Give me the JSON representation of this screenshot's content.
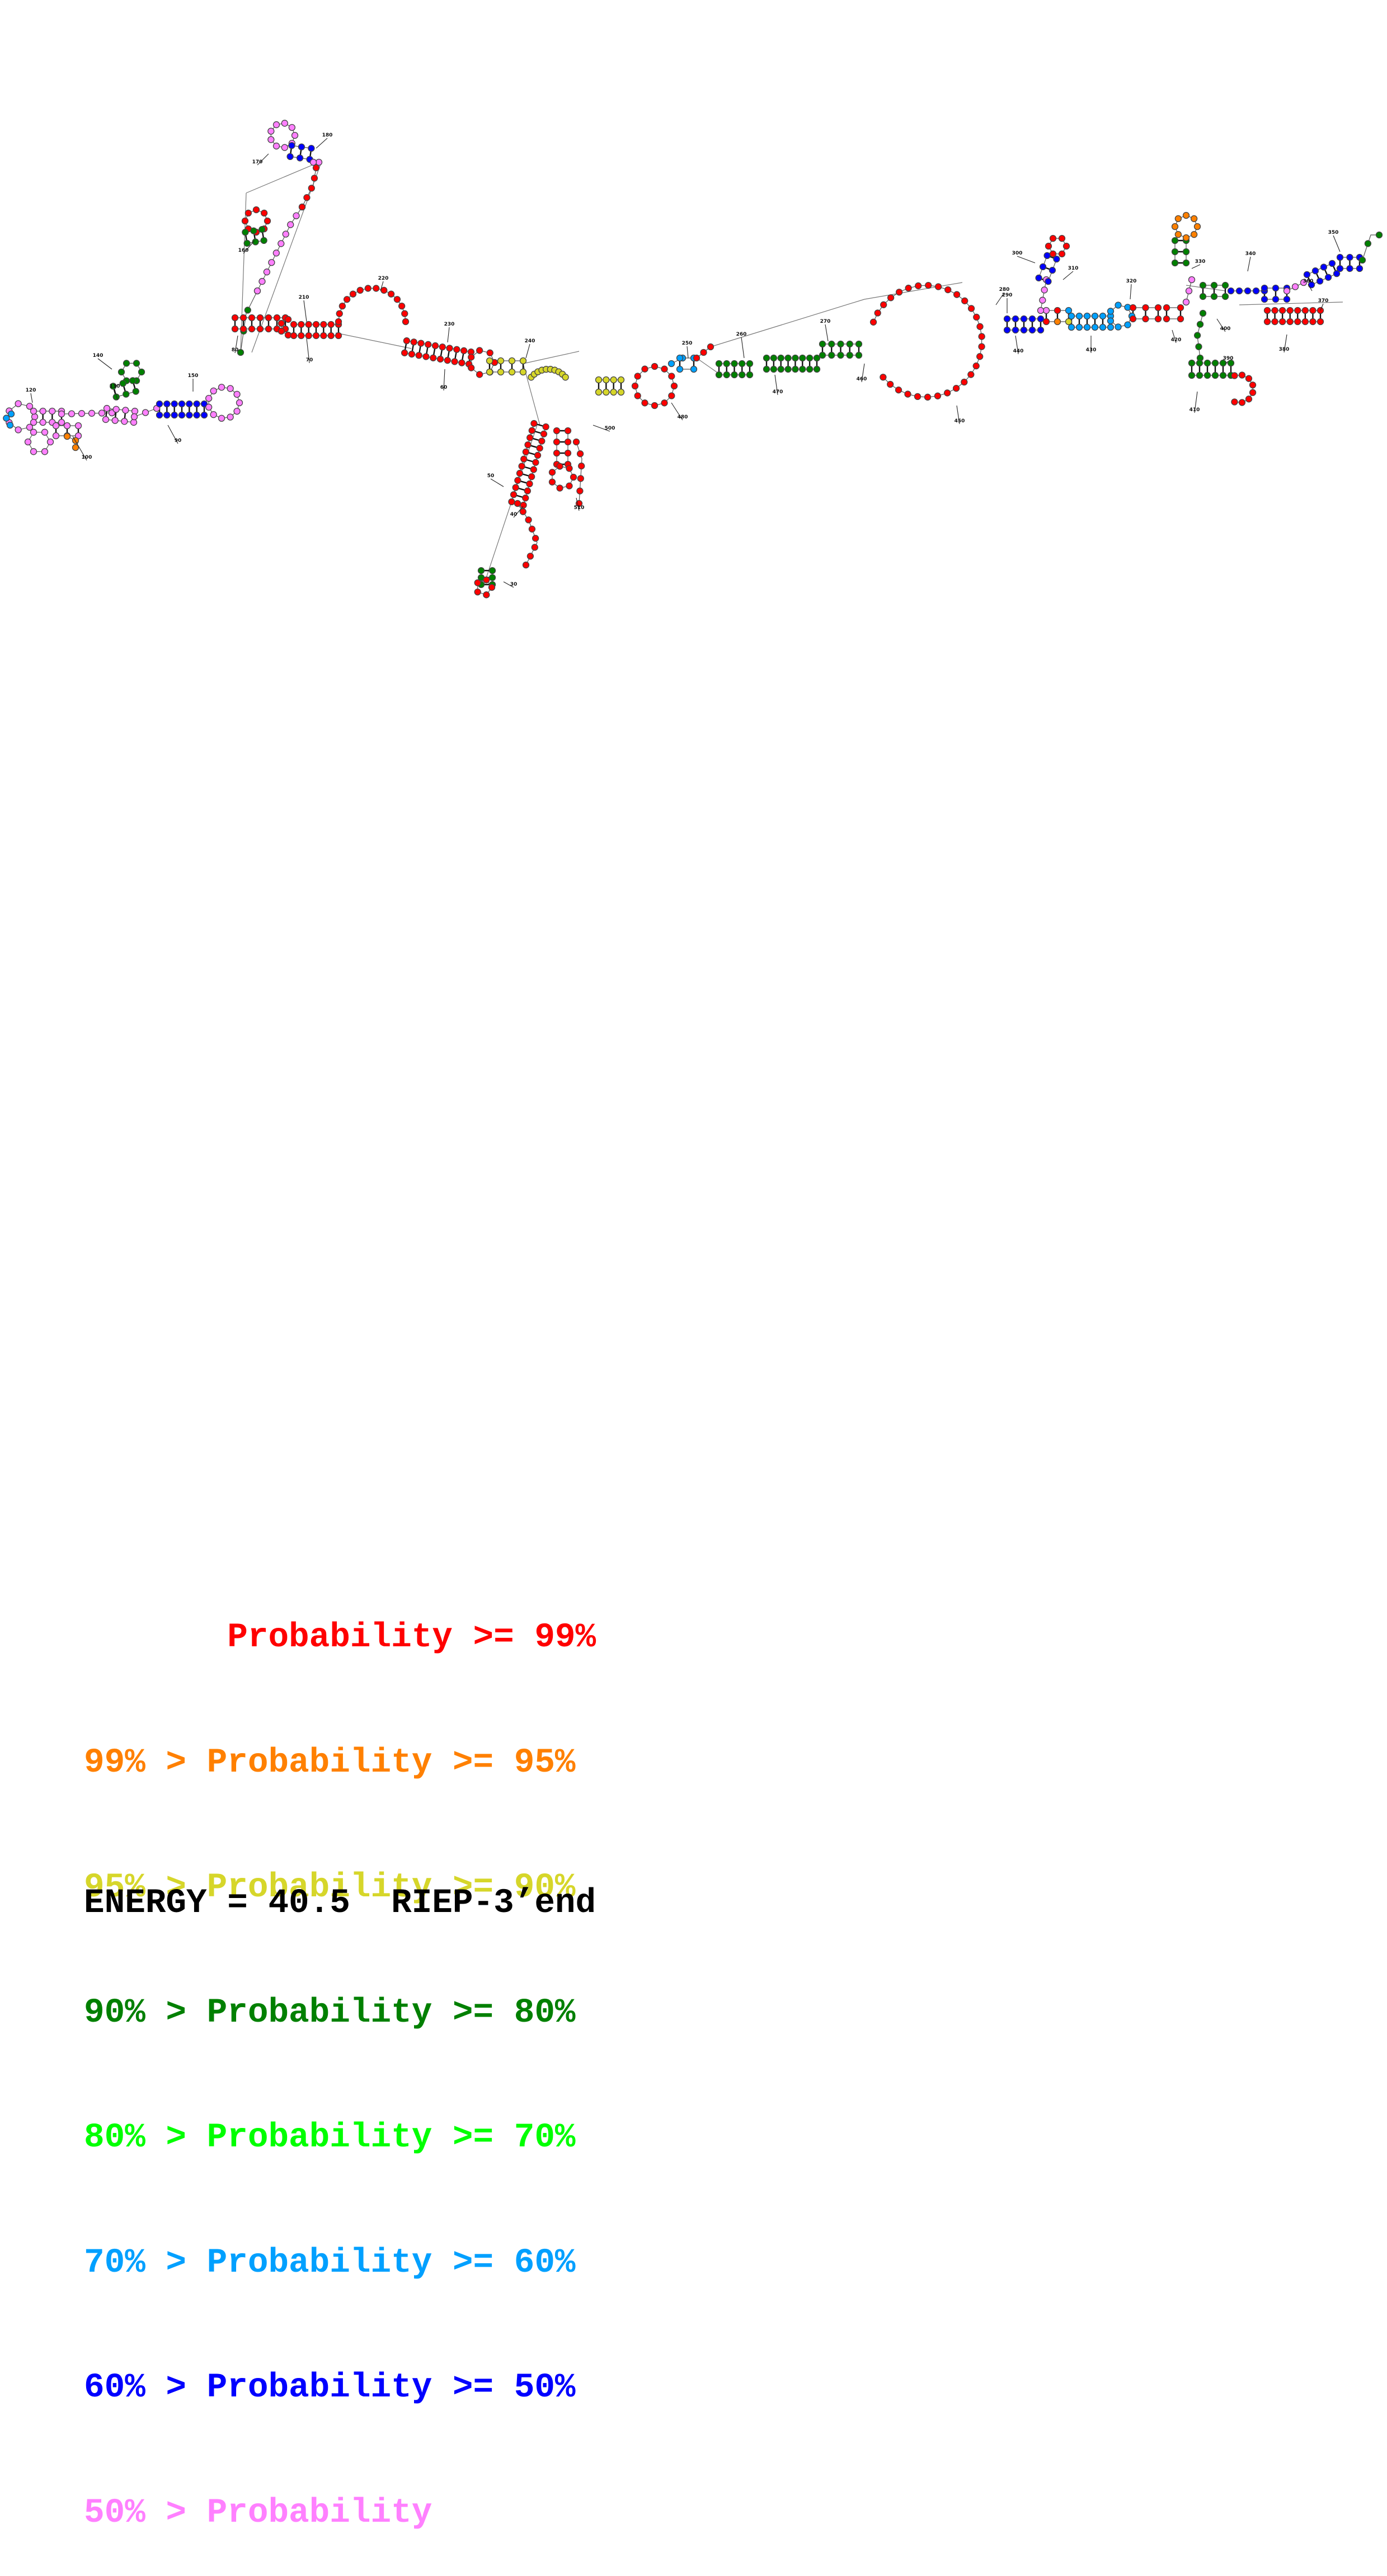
{
  "diagram": {
    "type": "rna-secondary-structure",
    "colors": {
      "p99": "#ff0000",
      "p95": "#ff8000",
      "p90": "#d6d62a",
      "p80": "#008000",
      "p70": "#00ff00",
      "p60": "#00a0ff",
      "p50": "#0000ff",
      "p0": "#ff80ff"
    },
    "position_labels": [
      "10",
      "20",
      "30",
      "40",
      "50",
      "60",
      "70",
      "80",
      "90",
      "100",
      "110",
      "120",
      "130",
      "140",
      "150",
      "160",
      "170",
      "180",
      "190",
      "200",
      "210",
      "220",
      "230",
      "240",
      "250",
      "260",
      "270",
      "280",
      "290",
      "300",
      "310",
      "320",
      "330",
      "340",
      "350",
      "360",
      "370",
      "380",
      "390",
      "400",
      "410",
      "420",
      "430",
      "440",
      "450",
      "460",
      "470",
      "480",
      "490",
      "500",
      "510"
    ]
  },
  "legend": {
    "items": [
      {
        "text": "       Probability >= 99%",
        "color": "#ff0000"
      },
      {
        "text": "99% > Probability >= 95%",
        "color": "#ff8000"
      },
      {
        "text": "95% > Probability >= 90%",
        "color": "#d6d62a"
      },
      {
        "text": "90% > Probability >= 80%",
        "color": "#008000"
      },
      {
        "text": "80% > Probability >= 70%",
        "color": "#00ff00"
      },
      {
        "text": "70% > Probability >= 60%",
        "color": "#00a0ff"
      },
      {
        "text": "60% > Probability >= 50%",
        "color": "#0000ff"
      },
      {
        "text": "50% > Probability",
        "color": "#ff80ff"
      }
    ],
    "energy": "ENERGY = 40.5  RIEP-3’end"
  }
}
